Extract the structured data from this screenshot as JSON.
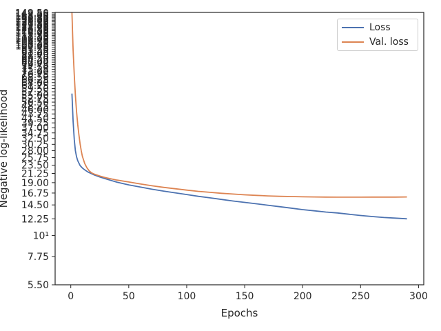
{
  "chart_data": {
    "type": "line",
    "xlabel": "Epochs",
    "ylabel": "Negative log-likelihood",
    "yscale": "log",
    "xlim": [
      -13.5,
      304.5
    ],
    "ylim": [
      5.5,
      150
    ],
    "x_ticks": [
      0,
      50,
      100,
      150,
      200,
      250,
      300
    ],
    "y_ticks": [
      {
        "value": 5.5,
        "label": "5.50"
      },
      {
        "value": 7.75,
        "label": "7.75"
      },
      {
        "value": 10,
        "label": "10¹"
      },
      {
        "value": 12.25,
        "label": "12.25"
      },
      {
        "value": 14.5,
        "label": "14.50"
      },
      {
        "value": 16.75,
        "label": "16.75"
      },
      {
        "value": 19.0,
        "label": "19.00"
      },
      {
        "value": 21.25,
        "label": "21.25"
      },
      {
        "value": 23.5,
        "label": "23.50"
      },
      {
        "value": 25.75,
        "label": "25.75"
      },
      {
        "value": 28.0,
        "label": "28.00"
      },
      {
        "value": 30.25,
        "label": "30.25"
      },
      {
        "value": 32.5,
        "label": "32.50"
      },
      {
        "value": 34.75,
        "label": "34.75"
      },
      {
        "value": 37.0,
        "label": "37.00"
      },
      {
        "value": 39.25,
        "label": "39.25"
      },
      {
        "value": 41.5,
        "label": "41.50"
      },
      {
        "value": 43.75,
        "label": "43.75"
      },
      {
        "value": 46.0,
        "label": "46.00"
      },
      {
        "value": 48.25,
        "label": "48.25"
      },
      {
        "value": 50.5,
        "label": "50.50"
      },
      {
        "value": 52.75,
        "label": "52.75"
      },
      {
        "value": 55.0,
        "label": "55.00"
      },
      {
        "value": 57.25,
        "label": "57.25"
      },
      {
        "value": 59.5,
        "label": "59.50"
      },
      {
        "value": 61.75,
        "label": "61.75"
      },
      {
        "value": 64.0,
        "label": "64.00"
      },
      {
        "value": 66.25,
        "label": "66.25"
      },
      {
        "value": 68.5,
        "label": "68.50"
      },
      {
        "value": 70.75,
        "label": "70.75"
      },
      {
        "value": 73.0,
        "label": "73.00"
      },
      {
        "value": 75.25,
        "label": "75.25"
      },
      {
        "value": 77.5,
        "label": "77.50"
      },
      {
        "value": 79.75,
        "label": "79.75"
      },
      {
        "value": 82.0,
        "label": "82.00"
      },
      {
        "value": 84.25,
        "label": "84.25"
      },
      {
        "value": 86.5,
        "label": "86.50"
      },
      {
        "value": 88.75,
        "label": "88.75"
      },
      {
        "value": 91.0,
        "label": "91.00"
      },
      {
        "value": 93.25,
        "label": "93.25"
      },
      {
        "value": 95.5,
        "label": "95.50"
      },
      {
        "value": 97.75,
        "label": "97.75"
      },
      {
        "value": 100.0,
        "label": "100.00"
      },
      {
        "value": 102.25,
        "label": "102.25"
      },
      {
        "value": 104.5,
        "label": "104.50"
      },
      {
        "value": 106.75,
        "label": "106.75"
      },
      {
        "value": 109.0,
        "label": "109.00"
      },
      {
        "value": 111.25,
        "label": "111.25"
      },
      {
        "value": 113.5,
        "label": "113.50"
      },
      {
        "value": 115.75,
        "label": "115.75"
      },
      {
        "value": 118.0,
        "label": "118.00"
      },
      {
        "value": 120.25,
        "label": "120.25"
      },
      {
        "value": 122.5,
        "label": "122.50"
      },
      {
        "value": 124.75,
        "label": "124.75"
      },
      {
        "value": 127.0,
        "label": "127.00"
      },
      {
        "value": 129.25,
        "label": "129.25"
      },
      {
        "value": 131.5,
        "label": "131.50"
      },
      {
        "value": 133.75,
        "label": "133.75"
      },
      {
        "value": 136.0,
        "label": "136.00"
      },
      {
        "value": 138.25,
        "label": "138.25"
      },
      {
        "value": 140.5,
        "label": "140.50"
      },
      {
        "value": 142.75,
        "label": "142.75"
      },
      {
        "value": 145.0,
        "label": "145.00"
      },
      {
        "value": 147.25,
        "label": "147.25"
      },
      {
        "value": 149.5,
        "label": "149.50"
      }
    ],
    "grid": false,
    "legend_position": "top-right",
    "series": [
      {
        "name": "Loss",
        "color": "#4c72b0",
        "x": [
          1,
          2,
          3,
          4,
          5,
          6,
          8,
          10,
          12,
          15,
          20,
          25,
          30,
          40,
          50,
          60,
          70,
          80,
          90,
          100,
          110,
          120,
          130,
          140,
          150,
          160,
          170,
          180,
          190,
          200,
          210,
          220,
          230,
          240,
          250,
          260,
          270,
          280,
          290
        ],
        "y": [
          56.0,
          40.0,
          32.0,
          28.0,
          26.0,
          24.8,
          23.4,
          22.7,
          22.2,
          21.6,
          20.9,
          20.35,
          19.9,
          19.1,
          18.5,
          18.0,
          17.55,
          17.15,
          16.8,
          16.45,
          16.1,
          15.8,
          15.5,
          15.2,
          14.95,
          14.7,
          14.45,
          14.2,
          13.95,
          13.7,
          13.5,
          13.3,
          13.15,
          12.95,
          12.75,
          12.6,
          12.45,
          12.35,
          12.25
        ]
      },
      {
        "name": "Val. loss",
        "color": "#dd8452",
        "x": [
          1,
          2,
          3,
          4,
          5,
          6,
          7,
          8,
          9,
          10,
          12,
          14,
          16,
          18,
          20,
          25,
          30,
          40,
          50,
          60,
          70,
          80,
          90,
          100,
          110,
          120,
          130,
          140,
          150,
          160,
          170,
          180,
          190,
          200,
          210,
          220,
          230,
          240,
          250,
          260,
          270,
          280,
          290
        ],
        "y": [
          150.0,
          95.0,
          70.0,
          55.0,
          45.0,
          38.5,
          34.0,
          30.5,
          28.0,
          26.2,
          24.0,
          22.7,
          21.9,
          21.4,
          21.1,
          20.6,
          20.2,
          19.6,
          19.15,
          18.7,
          18.3,
          17.95,
          17.65,
          17.35,
          17.1,
          16.9,
          16.7,
          16.55,
          16.4,
          16.28,
          16.18,
          16.1,
          16.05,
          16.0,
          15.97,
          15.95,
          15.94,
          15.93,
          15.93,
          15.95,
          15.95,
          15.95,
          15.97
        ]
      }
    ]
  }
}
